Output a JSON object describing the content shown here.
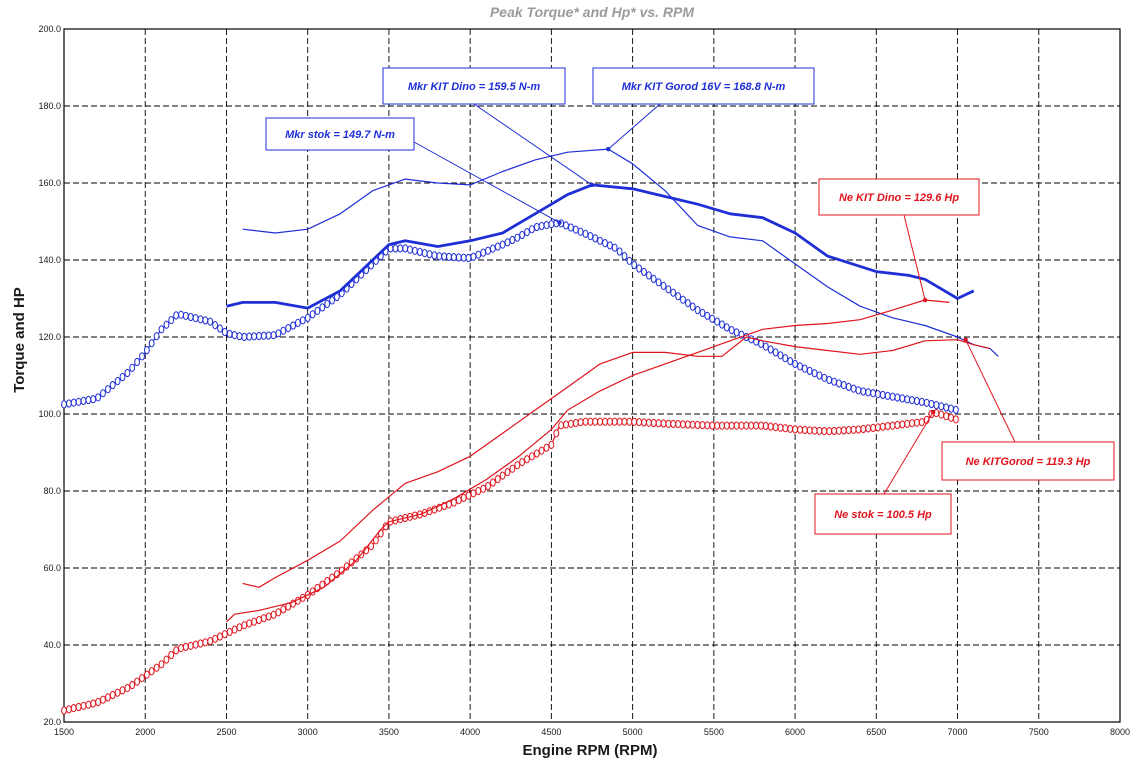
{
  "chart_data": {
    "type": "line",
    "title": "Peak Torque* and Hp* vs. RPM",
    "xlabel": "Engine RPM (RPM)",
    "ylabel": "Torque and HP",
    "xlim": [
      1500,
      8000
    ],
    "ylim": [
      20,
      200
    ],
    "x_ticks": [
      "1500",
      "2000",
      "2500",
      "3000",
      "3500",
      "4000",
      "4500",
      "5000",
      "5500",
      "6000",
      "6500",
      "7000",
      "7500",
      "8000"
    ],
    "y_ticks": [
      "20.0",
      "40.0",
      "60.0",
      "80.0",
      "100.0",
      "120.0",
      "140.0",
      "160.0",
      "180.0",
      "200.0"
    ],
    "grid": true,
    "legend": "none",
    "colors": {
      "torque": "#1f2fd6",
      "power": "#e0141d",
      "grid": "#000000"
    },
    "series": [
      {
        "key": "torque_stok",
        "color": "#1f2fd6",
        "style": "markers",
        "width": 1.2,
        "points": [
          [
            1500,
            102.5
          ],
          [
            1700,
            104
          ],
          [
            1900,
            111
          ],
          [
            2000,
            116
          ],
          [
            2100,
            122
          ],
          [
            2200,
            126
          ],
          [
            2400,
            124
          ],
          [
            2500,
            121
          ],
          [
            2600,
            120
          ],
          [
            2800,
            120.5
          ],
          [
            3000,
            125
          ],
          [
            3200,
            131
          ],
          [
            3400,
            139
          ],
          [
            3500,
            143
          ],
          [
            3600,
            143
          ],
          [
            3800,
            141
          ],
          [
            4000,
            140.5
          ],
          [
            4200,
            144
          ],
          [
            4300,
            146
          ],
          [
            4400,
            148.5
          ],
          [
            4550,
            149.7
          ],
          [
            4700,
            147
          ],
          [
            4900,
            143
          ],
          [
            5000,
            139
          ],
          [
            5200,
            133
          ],
          [
            5400,
            127
          ],
          [
            5600,
            122
          ],
          [
            5800,
            118
          ],
          [
            6000,
            113
          ],
          [
            6200,
            109
          ],
          [
            6400,
            106
          ],
          [
            6600,
            104.5
          ],
          [
            6800,
            103
          ],
          [
            6900,
            102
          ],
          [
            7000,
            101
          ]
        ]
      },
      {
        "key": "torque_kit_dino",
        "color": "#1f2fd6",
        "style": "thick",
        "width": 2.8,
        "points": [
          [
            2500,
            128
          ],
          [
            2600,
            129
          ],
          [
            2800,
            129
          ],
          [
            3000,
            127.5
          ],
          [
            3200,
            132
          ],
          [
            3400,
            140
          ],
          [
            3500,
            144
          ],
          [
            3600,
            145
          ],
          [
            3800,
            143.5
          ],
          [
            4000,
            145
          ],
          [
            4200,
            147
          ],
          [
            4400,
            152
          ],
          [
            4600,
            157
          ],
          [
            4750,
            159.5
          ],
          [
            5000,
            158.5
          ],
          [
            5200,
            156.5
          ],
          [
            5400,
            154.5
          ],
          [
            5600,
            152
          ],
          [
            5800,
            151
          ],
          [
            6000,
            147
          ],
          [
            6200,
            141
          ],
          [
            6500,
            137
          ],
          [
            6700,
            136
          ],
          [
            6800,
            135
          ],
          [
            7000,
            130
          ],
          [
            7050,
            131
          ],
          [
            7100,
            132
          ]
        ]
      },
      {
        "key": "torque_kit_gorod",
        "color": "#1f2fd6",
        "style": "thin",
        "width": 1.2,
        "points": [
          [
            2600,
            148
          ],
          [
            2800,
            147
          ],
          [
            3000,
            148
          ],
          [
            3200,
            152
          ],
          [
            3400,
            158
          ],
          [
            3600,
            161
          ],
          [
            3800,
            160
          ],
          [
            4000,
            159.5
          ],
          [
            4200,
            163
          ],
          [
            4400,
            166
          ],
          [
            4600,
            168
          ],
          [
            4850,
            168.8
          ],
          [
            5000,
            165
          ],
          [
            5200,
            158
          ],
          [
            5400,
            149
          ],
          [
            5600,
            146
          ],
          [
            5800,
            145
          ],
          [
            6000,
            139
          ],
          [
            6200,
            133
          ],
          [
            6400,
            128
          ],
          [
            6600,
            125
          ],
          [
            6800,
            123
          ],
          [
            7000,
            120
          ],
          [
            7100,
            118
          ],
          [
            7200,
            117
          ],
          [
            7250,
            115
          ]
        ]
      },
      {
        "key": "power_stok",
        "color": "#e0141d",
        "style": "markers",
        "width": 1.2,
        "points": [
          [
            1500,
            23
          ],
          [
            1700,
            25
          ],
          [
            1900,
            29
          ],
          [
            2000,
            32
          ],
          [
            2100,
            35
          ],
          [
            2200,
            39
          ],
          [
            2400,
            41
          ],
          [
            2500,
            43
          ],
          [
            2600,
            45
          ],
          [
            2800,
            48
          ],
          [
            3000,
            53
          ],
          [
            3200,
            59
          ],
          [
            3400,
            66
          ],
          [
            3500,
            72
          ],
          [
            3700,
            74
          ],
          [
            3900,
            77
          ],
          [
            4100,
            81
          ],
          [
            4300,
            87
          ],
          [
            4500,
            92
          ],
          [
            4550,
            97
          ],
          [
            4700,
            98
          ],
          [
            5000,
            98
          ],
          [
            5200,
            97.5
          ],
          [
            5500,
            97
          ],
          [
            5800,
            97
          ],
          [
            6000,
            96
          ],
          [
            6200,
            95.5
          ],
          [
            6400,
            96
          ],
          [
            6600,
            97
          ],
          [
            6800,
            98
          ],
          [
            6850,
            100.5
          ],
          [
            7000,
            98.5
          ]
        ]
      },
      {
        "key": "power_kit_dino",
        "color": "#e0141d",
        "style": "thin",
        "width": 1.2,
        "points": [
          [
            2500,
            46
          ],
          [
            2550,
            48
          ],
          [
            2700,
            49
          ],
          [
            2900,
            51
          ],
          [
            3100,
            55
          ],
          [
            3300,
            62
          ],
          [
            3450,
            70
          ],
          [
            3500,
            72
          ],
          [
            3700,
            74
          ],
          [
            3900,
            78
          ],
          [
            4100,
            83
          ],
          [
            4300,
            89
          ],
          [
            4500,
            96
          ],
          [
            4600,
            101
          ],
          [
            4800,
            106
          ],
          [
            5000,
            110
          ],
          [
            5200,
            113
          ],
          [
            5400,
            116
          ],
          [
            5600,
            119
          ],
          [
            5800,
            122
          ],
          [
            6000,
            123
          ],
          [
            6200,
            123.5
          ],
          [
            6400,
            124.5
          ],
          [
            6600,
            127
          ],
          [
            6800,
            129.6
          ],
          [
            6950,
            129
          ]
        ]
      },
      {
        "key": "power_kit_gorod",
        "color": "#e0141d",
        "style": "thin",
        "width": 1.2,
        "points": [
          [
            2600,
            56
          ],
          [
            2700,
            55
          ],
          [
            2800,
            57.5
          ],
          [
            3000,
            62
          ],
          [
            3200,
            67
          ],
          [
            3400,
            75
          ],
          [
            3600,
            82
          ],
          [
            3800,
            85
          ],
          [
            4000,
            89
          ],
          [
            4200,
            95
          ],
          [
            4400,
            101
          ],
          [
            4600,
            107
          ],
          [
            4800,
            113
          ],
          [
            5000,
            116
          ],
          [
            5200,
            116
          ],
          [
            5400,
            115
          ],
          [
            5550,
            115
          ],
          [
            5700,
            120
          ],
          [
            5800,
            119
          ],
          [
            6000,
            117.5
          ],
          [
            6200,
            116.5
          ],
          [
            6400,
            115.5
          ],
          [
            6600,
            116.5
          ],
          [
            6800,
            119
          ],
          [
            7000,
            119.3
          ],
          [
            7100,
            118
          ],
          [
            7200,
            117
          ]
        ]
      }
    ],
    "annotations": [
      {
        "key": "mkr_stok",
        "text": "Mkr stok = 149.7 N-m",
        "color": "#1f2fd6",
        "target": [
          4550,
          149.7
        ]
      },
      {
        "key": "mkr_kit_dino",
        "text": "Mkr KIT Dino = 159.5 N-m",
        "color": "#1f2fd6",
        "target": [
          4750,
          159.5
        ]
      },
      {
        "key": "mkr_kit_gorod",
        "text": "Mkr KIT Gorod 16V =  168.8 N-m",
        "color": "#1f2fd6",
        "target": [
          4850,
          168.8
        ]
      },
      {
        "key": "ne_kit_dino",
        "text": "Ne KIT Dino = 129.6 Hp",
        "color": "#e0141d",
        "target": [
          6800,
          129.6
        ]
      },
      {
        "key": "ne_kit_gorod",
        "text": "Ne KITGorod = 119.3 Hp",
        "color": "#e0141d",
        "target": [
          7050,
          119.3
        ]
      },
      {
        "key": "ne_stok",
        "text": "Ne stok = 100.5 Hp",
        "color": "#e0141d",
        "target": [
          6850,
          100.5
        ]
      }
    ]
  }
}
